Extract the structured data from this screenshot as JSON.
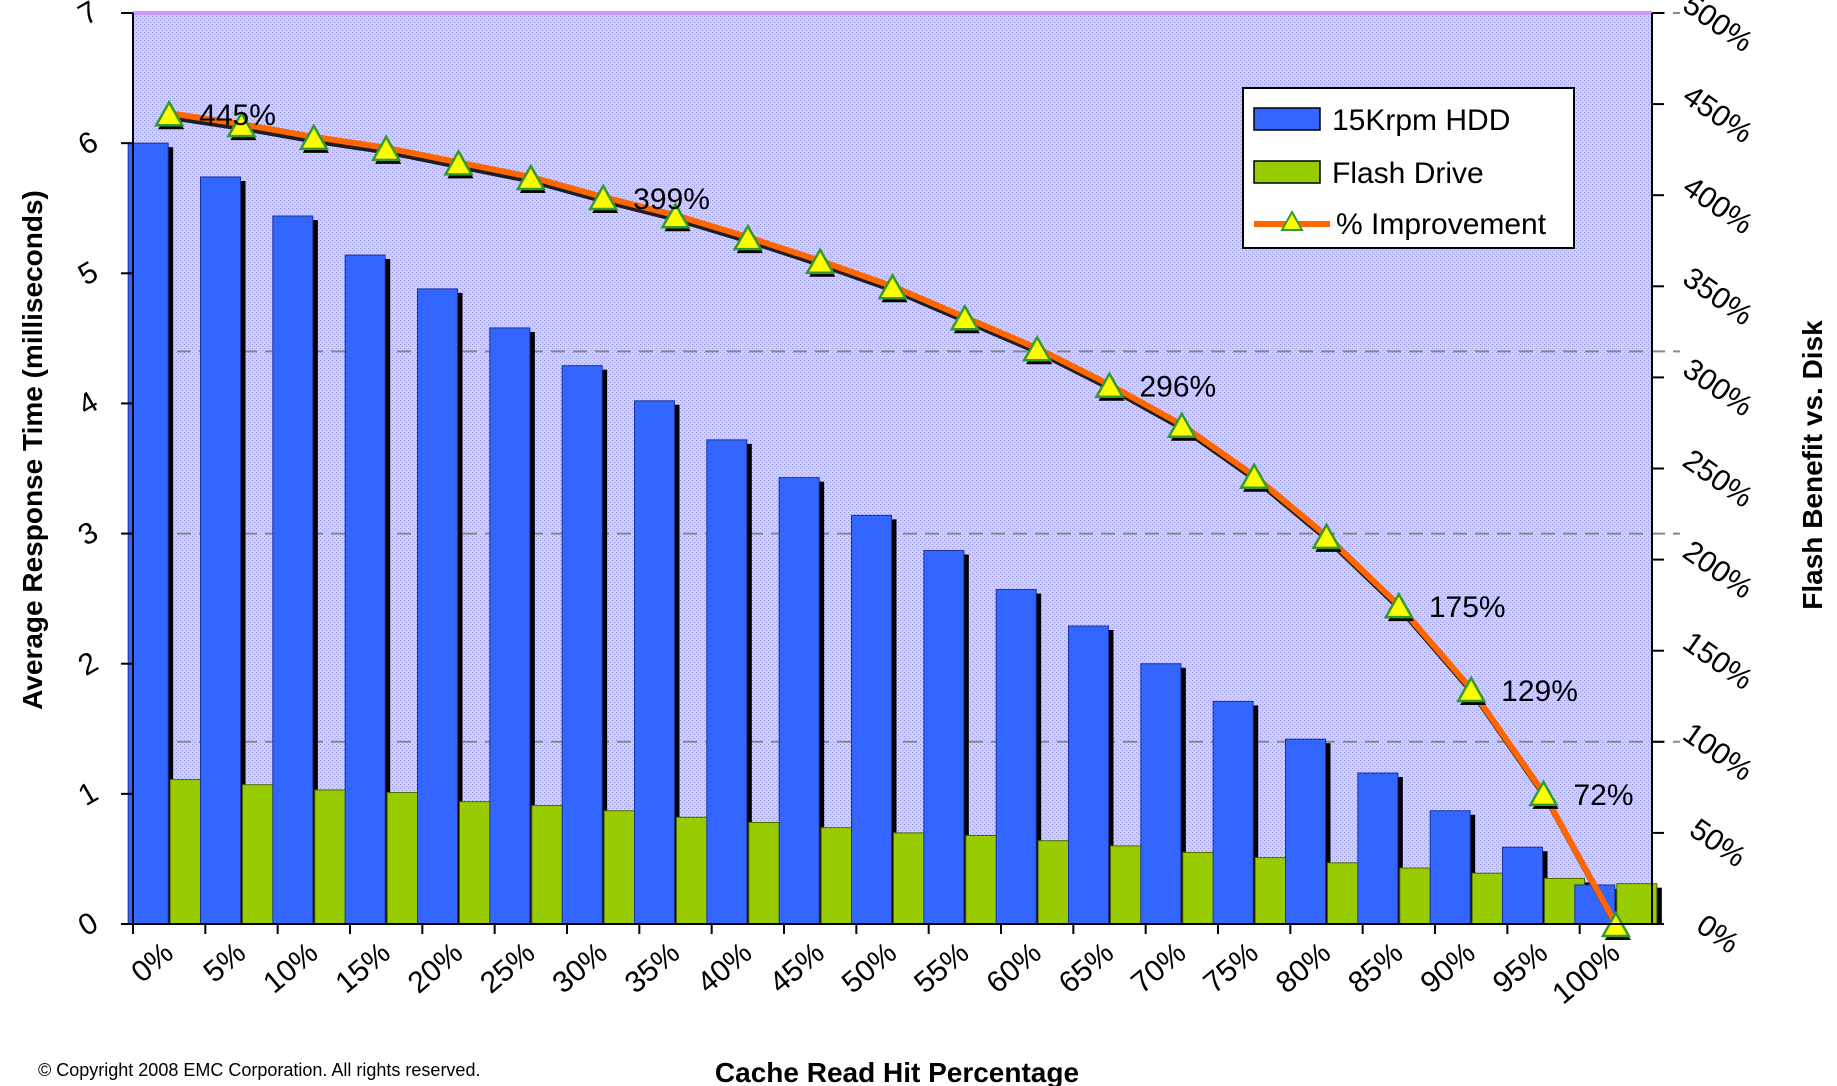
{
  "copyright": "© Copyright 2008 EMC Corporation. All rights reserved.",
  "chart_data": {
    "type": "bar",
    "title": "",
    "xlabel": "Cache Read Hit Percentage",
    "ylabel": "Average Response Time (milliseconds)",
    "y2label": "Flash Benefit vs. Disk",
    "categories": [
      "0%",
      "5%",
      "10%",
      "15%",
      "20%",
      "25%",
      "30%",
      "35%",
      "40%",
      "45%",
      "50%",
      "55%",
      "60%",
      "65%",
      "70%",
      "75%",
      "80%",
      "85%",
      "90%",
      "95%",
      "100%"
    ],
    "ylim": [
      0,
      7
    ],
    "yticks": [
      "0",
      "1",
      "2",
      "3",
      "4",
      "5",
      "6",
      "7"
    ],
    "y2lim": [
      0,
      500
    ],
    "y2ticks": [
      "0%",
      "50%",
      "100%",
      "150%",
      "200%",
      "250%",
      "300%",
      "350%",
      "400%",
      "450%",
      "500%"
    ],
    "grid": "dashed horizontal lines at y = 1.4, 3, 4.4, 7",
    "legend_position": "top-right",
    "colors": {
      "hdd": "#3366ff",
      "flash": "#99cc00",
      "improvement_line": "#ff6600",
      "marker": "#ffff00",
      "plot_bg": "#ccccff"
    },
    "series": [
      {
        "name": "15Krpm HDD",
        "kind": "bar",
        "values": [
          6.0,
          5.74,
          5.44,
          5.14,
          4.88,
          4.58,
          4.29,
          4.02,
          3.72,
          3.43,
          3.14,
          2.87,
          2.57,
          2.29,
          2.0,
          1.71,
          1.42,
          1.16,
          0.87,
          0.59,
          0.3
        ]
      },
      {
        "name": "Flash Drive",
        "kind": "bar",
        "values": [
          1.11,
          1.07,
          1.03,
          1.01,
          0.94,
          0.91,
          0.87,
          0.82,
          0.78,
          0.74,
          0.7,
          0.68,
          0.64,
          0.6,
          0.55,
          0.51,
          0.47,
          0.43,
          0.39,
          0.35,
          0.31
        ]
      },
      {
        "name": "% Improvement",
        "kind": "line",
        "axis": "y2",
        "values": [
          445,
          439,
          432,
          426,
          418,
          410,
          399,
          389,
          377,
          364,
          350,
          333,
          316,
          296,
          274,
          246,
          213,
          175,
          129,
          72,
          0
        ]
      }
    ],
    "data_labels": [
      {
        "index": 0,
        "text": "445%"
      },
      {
        "index": 6,
        "text": "399%"
      },
      {
        "index": 13,
        "text": "296%"
      },
      {
        "index": 17,
        "text": "175%"
      },
      {
        "index": 18,
        "text": "129%"
      },
      {
        "index": 19,
        "text": "72%"
      }
    ]
  }
}
